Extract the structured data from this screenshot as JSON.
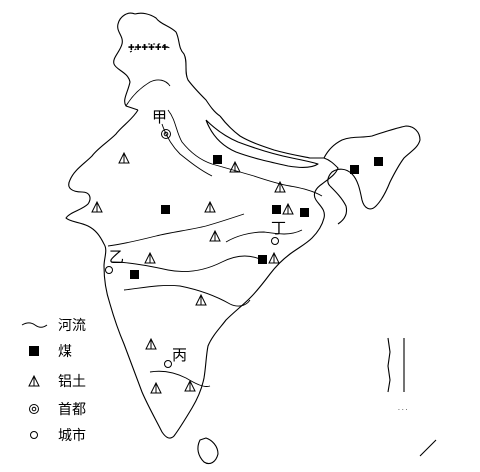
{
  "map": {
    "place_labels": {
      "jia": "甲",
      "yi": "乙",
      "bing": "丙",
      "ding": "丁"
    },
    "legend": {
      "river": "河流",
      "coal": "煤",
      "bauxite": "铝土",
      "capital": "首都",
      "city": "城市"
    },
    "colors": {
      "ink": "#000000",
      "paper": "#ffffff"
    },
    "symbols": {
      "coal": "filled-square",
      "bauxite": "triangle-with-line",
      "capital": "double-circle",
      "city": "small-circle"
    }
  }
}
